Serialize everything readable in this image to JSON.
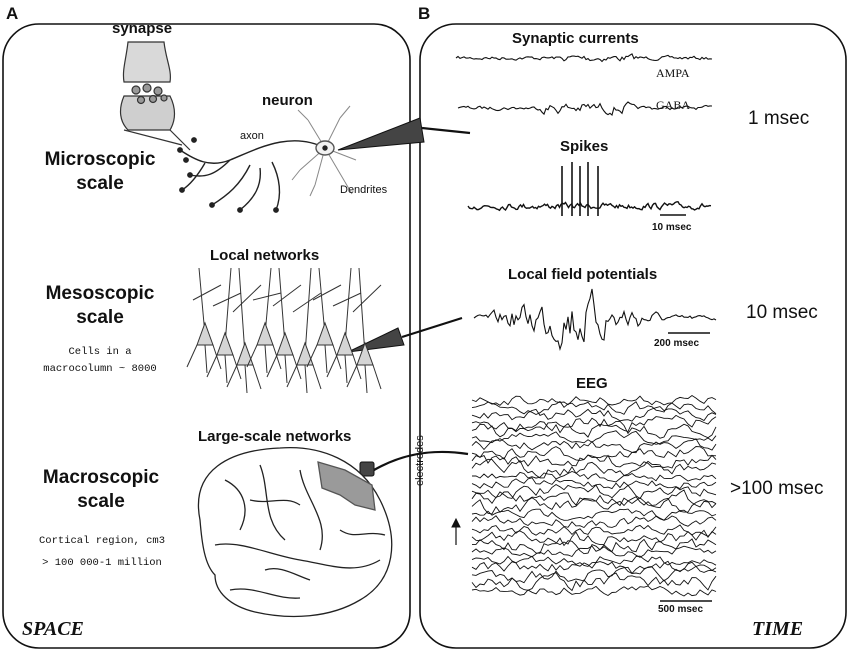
{
  "panels": {
    "a": {
      "letter": "A",
      "footer": "SPACE"
    },
    "b": {
      "letter": "B",
      "footer": "TIME"
    }
  },
  "micro": {
    "title_line1": "Microscopic",
    "title_line2": "scale",
    "synapse": "synapse",
    "neuron": "neuron",
    "axon": "axon",
    "dendrites": "Dendrites"
  },
  "meso": {
    "title_line1": "Mesoscopic",
    "title_line2": "scale",
    "networks": "Local networks",
    "note_line1": "Cells in a",
    "note_line2": "macrocolumn ~ 8000"
  },
  "macro": {
    "title_line1": "Macroscopic",
    "title_line2": "scale",
    "networks": "Large-scale networks",
    "note_line1": "Cortical region, cm3",
    "note_line2": "> 100 000-1 million"
  },
  "signals": {
    "synaptic": {
      "title": "Synaptic currents",
      "ampa": "AMPA",
      "gaba": "GABA"
    },
    "spikes": {
      "title": "Spikes",
      "scalebar": "10 msec"
    },
    "lfp": {
      "title": "Local field potentials",
      "scalebar": "200 msec"
    },
    "eeg": {
      "title": "EEG",
      "axis": "electrodes",
      "scalebar": "500 msec"
    }
  },
  "timescales": {
    "t1": "1 msec",
    "t2": "10 msec",
    "t3": ">100 msec"
  }
}
